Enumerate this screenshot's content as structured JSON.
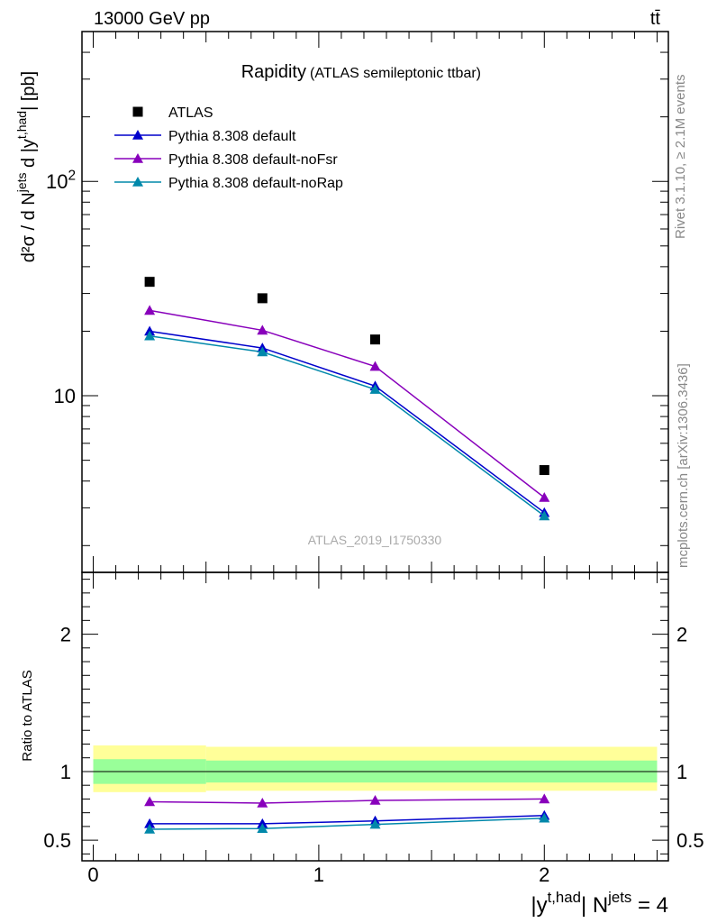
{
  "header": {
    "energy_label": "13000 GeV pp",
    "process_label": "tt̄"
  },
  "side_text": {
    "rivet": "Rivet 3.1.10, ≥ 2.1M events",
    "mcplots": "mcplots.cern.ch [arXiv:1306.3436]"
  },
  "chart_data": [
    {
      "type": "scatter",
      "title": "Rapidity",
      "subtitle": "(ATLAS semileptonic ttbar)",
      "watermark": "ATLAS_2019_I1750330",
      "yscale": "log",
      "ylim": [
        1.5,
        500
      ],
      "xlim": [
        -0.05,
        2.55
      ],
      "x_ticks": [
        "0",
        "1",
        "2"
      ],
      "y_ticks": [
        "10",
        "10^2"
      ],
      "ylabel": "d²σ / d N^jets d |y^t,had| [pb]",
      "legend_position": "top-left",
      "x": [
        0.25,
        0.75,
        1.25,
        2.0
      ],
      "series": [
        {
          "name": "ATLAS",
          "color": "#000000",
          "marker": "square",
          "values": [
            34.0,
            28.5,
            18.3,
            4.5
          ]
        },
        {
          "name": "Pythia 8.308 default",
          "color": "#0000cc",
          "marker": "triangle",
          "values": [
            20.0,
            16.7,
            11.1,
            2.85
          ]
        },
        {
          "name": "Pythia 8.308 default-noFsr",
          "color": "#8800bb",
          "marker": "triangle",
          "values": [
            25.0,
            20.2,
            13.7,
            3.35
          ]
        },
        {
          "name": "Pythia 8.308 default-noRap",
          "color": "#0088aa",
          "marker": "triangle",
          "values": [
            19.0,
            16.0,
            10.7,
            2.75
          ]
        }
      ]
    },
    {
      "type": "line",
      "ylabel": "Ratio to ATLAS",
      "xlabel": "|y^t,had| N^jets = 4",
      "ylim": [
        0.35,
        2.45
      ],
      "xlim": [
        -0.05,
        2.55
      ],
      "x_ticks": [
        "0",
        "1",
        "2"
      ],
      "y_ticks": [
        "0.5",
        "1",
        "2"
      ],
      "x": [
        0.25,
        0.75,
        1.25,
        2.0
      ],
      "bands": [
        {
          "color": "#ffff99",
          "segments": [
            [
              0.0,
              0.5,
              0.85,
              1.19
            ],
            [
              0.5,
              2.5,
              0.86,
              1.18
            ]
          ]
        },
        {
          "color": "#99ff99",
          "segments": [
            [
              0.0,
              0.5,
              0.91,
              1.09
            ],
            [
              0.5,
              2.5,
              0.92,
              1.08
            ]
          ]
        }
      ],
      "series": [
        {
          "name": "Pythia 8.308 default",
          "color": "#0000cc",
          "values": [
            0.62,
            0.62,
            0.64,
            0.68
          ]
        },
        {
          "name": "Pythia 8.308 default-noFsr",
          "color": "#8800bb",
          "values": [
            0.78,
            0.77,
            0.79,
            0.8
          ]
        },
        {
          "name": "Pythia 8.308 default-noRap",
          "color": "#0088aa",
          "values": [
            0.58,
            0.585,
            0.615,
            0.66
          ]
        }
      ]
    }
  ]
}
